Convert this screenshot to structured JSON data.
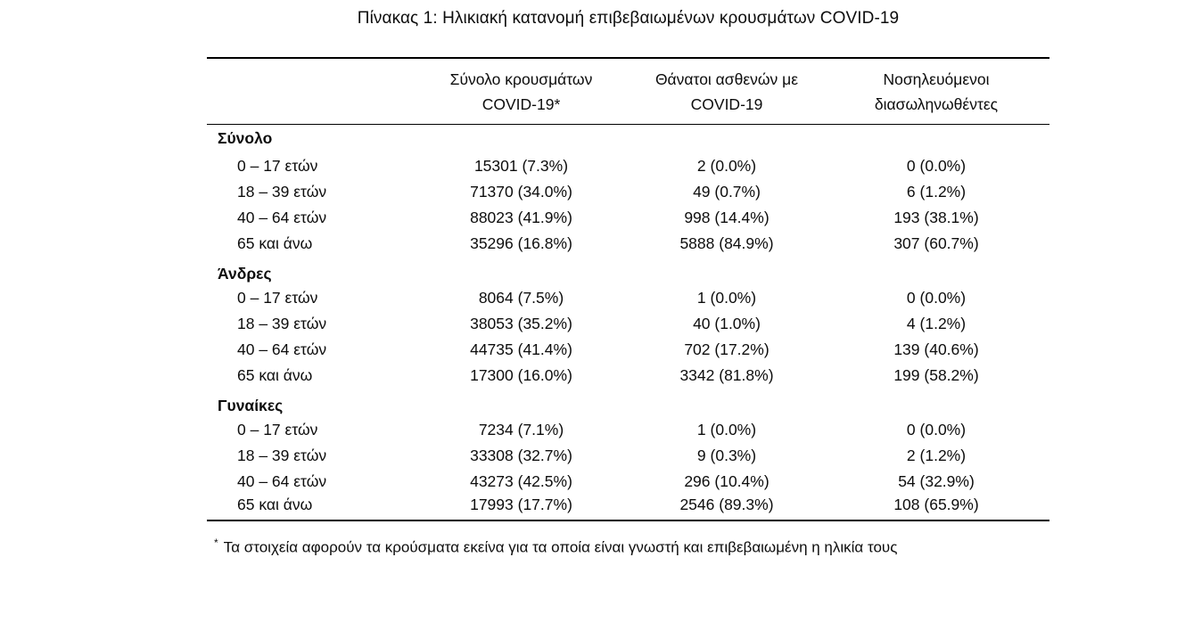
{
  "title": "Πίνακας 1: Ηλικιακή κατανομή επιβεβαιωμένων κρουσμάτων COVID-19",
  "table": {
    "columns": [
      {
        "line1": "Σύνολο κρουσμάτων",
        "line2": "COVID-19*"
      },
      {
        "line1": "Θάνατοι ασθενών με",
        "line2": "COVID-19"
      },
      {
        "line1": "Νοσηλευόμενοι",
        "line2": "διασωληνωθέντες"
      }
    ],
    "groups": [
      {
        "label": "Σύνολο",
        "rows": [
          {
            "age": "0 – 17 ετών",
            "cases": "15301 (7.3%)",
            "deaths": "2 (0.0%)",
            "intubated": "0 (0.0%)"
          },
          {
            "age": "18 – 39 ετών",
            "cases": "71370 (34.0%)",
            "deaths": "49 (0.7%)",
            "intubated": "6 (1.2%)"
          },
          {
            "age": "40 – 64 ετών",
            "cases": "88023 (41.9%)",
            "deaths": "998 (14.4%)",
            "intubated": "193 (38.1%)"
          },
          {
            "age": "65 και άνω",
            "cases": "35296 (16.8%)",
            "deaths": "5888 (84.9%)",
            "intubated": "307 (60.7%)"
          }
        ]
      },
      {
        "label": "Άνδρες",
        "rows": [
          {
            "age": "0 – 17 ετών",
            "cases": "8064 (7.5%)",
            "deaths": "1 (0.0%)",
            "intubated": "0 (0.0%)"
          },
          {
            "age": "18 – 39 ετών",
            "cases": "38053 (35.2%)",
            "deaths": "40 (1.0%)",
            "intubated": "4 (1.2%)"
          },
          {
            "age": "40 – 64 ετών",
            "cases": "44735 (41.4%)",
            "deaths": "702 (17.2%)",
            "intubated": "139 (40.6%)"
          },
          {
            "age": "65 και άνω",
            "cases": "17300 (16.0%)",
            "deaths": "3342 (81.8%)",
            "intubated": "199 (58.2%)"
          }
        ]
      },
      {
        "label": "Γυναίκες",
        "rows": [
          {
            "age": "0 – 17 ετών",
            "cases": "7234 (7.1%)",
            "deaths": "1 (0.0%)",
            "intubated": "0 (0.0%)"
          },
          {
            "age": "18 – 39 ετών",
            "cases": "33308 (32.7%)",
            "deaths": "9 (0.3%)",
            "intubated": "2 (1.2%)"
          },
          {
            "age": "40 – 64 ετών",
            "cases": "43273 (42.5%)",
            "deaths": "296 (10.4%)",
            "intubated": "54 (32.9%)"
          },
          {
            "age": "65 και άνω",
            "cases": "17993 (17.7%)",
            "deaths": "2546 (89.3%)",
            "intubated": "108 (65.9%)"
          }
        ]
      }
    ],
    "footnote_marker": "*",
    "footnote": "Τα στοιχεία αφορούν τα κρούσματα εκείνα για τα οποία είναι γνωστή και επιβεβαιωμένη η ηλικία τους"
  },
  "colors": {
    "text": "#0d0d0d",
    "rule": "#000000",
    "background": "#ffffff"
  }
}
